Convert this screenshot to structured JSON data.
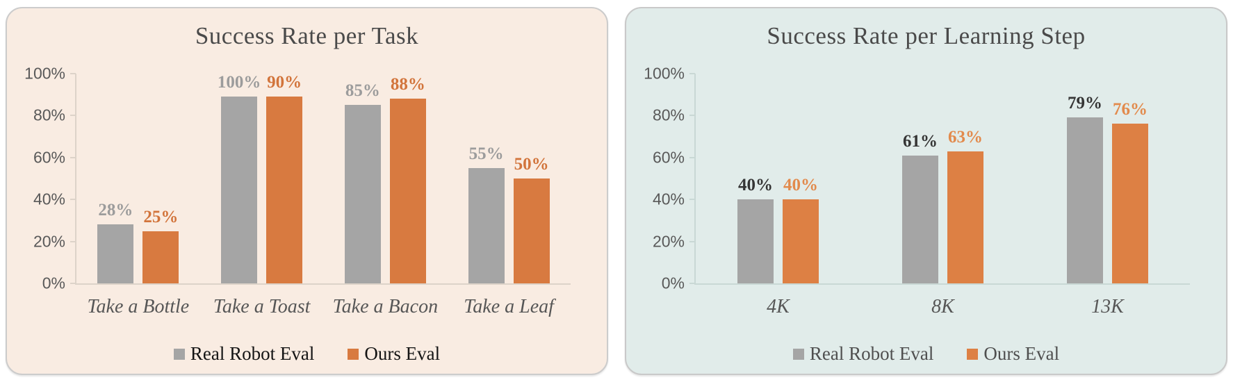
{
  "page": {
    "background": "#ffffff"
  },
  "chart_data": [
    {
      "type": "bar",
      "title": "Success Rate per Task",
      "categories": [
        "Take a Bottle",
        "Take a Toast",
        "Take a Bacon",
        "Take a Leaf"
      ],
      "series": [
        {
          "name": "Real Robot Eval",
          "color": "#a5a5a5",
          "label_color": "#9c9c9c",
          "values": [
            28,
            100,
            85,
            55
          ]
        },
        {
          "name": "Ours Eval",
          "color": "#d87a40",
          "label_color": "#d2743b",
          "values": [
            25,
            90,
            88,
            50
          ]
        }
      ],
      "y_axis": {
        "ylim": [
          0,
          100
        ],
        "ticks": [
          {
            "label": "0%",
            "value": 0
          },
          {
            "label": "20%",
            "value": 20
          },
          {
            "label": "40%",
            "value": 40
          },
          {
            "label": "60%",
            "value": 60
          },
          {
            "label": "80%",
            "value": 80
          },
          {
            "label": "100%",
            "value": 100
          }
        ]
      },
      "legend_position": "bottom",
      "grid": false,
      "colors": {
        "panel_background": "#f9ece2",
        "panel_border": "#cccccc",
        "title": "#4a4a4a",
        "axis": "#ddd3c9",
        "tick_labels": "#595959",
        "category_labels": "#565656",
        "legend_text": "#141414"
      }
    },
    {
      "type": "bar",
      "title": "Success Rate per Learning Step",
      "categories": [
        "4K",
        "8K",
        "13K"
      ],
      "series": [
        {
          "name": "Real Robot Eval",
          "color": "#a5a5a5",
          "label_color": "#353535",
          "values": [
            40,
            61,
            79
          ]
        },
        {
          "name": "Ours Eval",
          "color": "#dd8044",
          "label_color": "#e28a4c",
          "values": [
            40,
            63,
            76
          ]
        }
      ],
      "y_axis": {
        "ylim": [
          0,
          100
        ],
        "ticks": [
          {
            "label": "0%",
            "value": 0
          },
          {
            "label": "20%",
            "value": 20
          },
          {
            "label": "40%",
            "value": 40
          },
          {
            "label": "60%",
            "value": 60
          },
          {
            "label": "80%",
            "value": 80
          },
          {
            "label": "100%",
            "value": 100
          }
        ]
      },
      "legend_position": "bottom",
      "grid": false,
      "colors": {
        "panel_background": "#e1ecea",
        "panel_border": "#c9c9c9",
        "title": "#4a4a4a",
        "axis": "#c9d8d5",
        "tick_labels": "#595959",
        "category_labels": "#565656",
        "legend_text": "#4f4f4f"
      }
    }
  ]
}
